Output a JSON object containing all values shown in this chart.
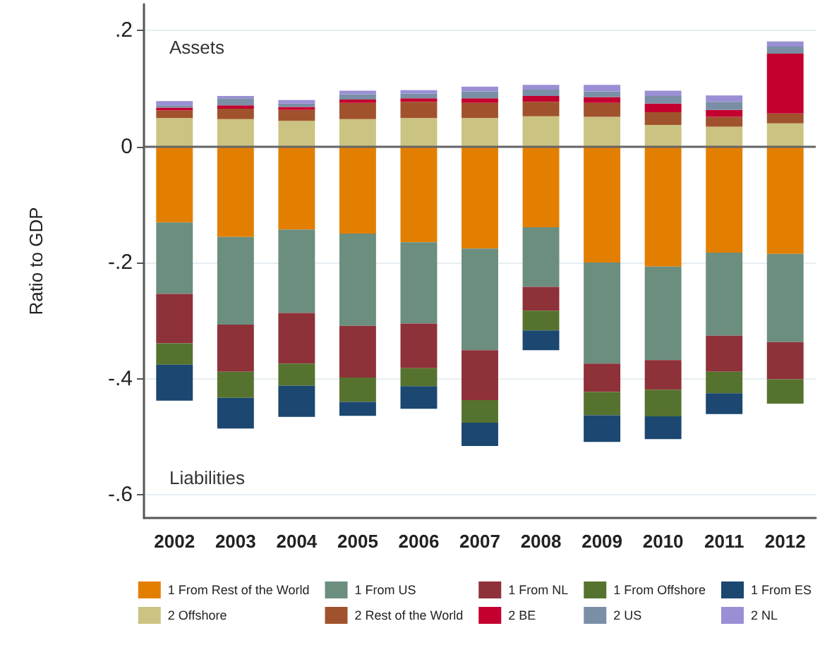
{
  "chart_data": {
    "type": "bar",
    "stacked": true,
    "ylabel": "Ratio to GDP",
    "categories": [
      "2002",
      "2003",
      "2004",
      "2005",
      "2006",
      "2007",
      "2008",
      "2009",
      "2010",
      "2011",
      "2012"
    ],
    "series": [
      {
        "name": "1 From Rest of the World",
        "color": "#e37f00",
        "values": [
          -0.131,
          -0.156,
          -0.143,
          -0.15,
          -0.165,
          -0.176,
          -0.139,
          -0.2,
          -0.207,
          -0.183,
          -0.185
        ]
      },
      {
        "name": "1 From US",
        "color": "#6b8e7f",
        "values": [
          -0.123,
          -0.151,
          -0.144,
          -0.159,
          -0.14,
          -0.175,
          -0.103,
          -0.174,
          -0.161,
          -0.143,
          -0.152
        ]
      },
      {
        "name": "1 From NL",
        "color": "#8e3139",
        "values": [
          -0.085,
          -0.081,
          -0.087,
          -0.089,
          -0.077,
          -0.086,
          -0.041,
          -0.049,
          -0.051,
          -0.062,
          -0.064
        ]
      },
      {
        "name": "1 From Offshore",
        "color": "#55732e",
        "values": [
          -0.037,
          -0.045,
          -0.038,
          -0.042,
          -0.031,
          -0.039,
          -0.034,
          -0.04,
          -0.046,
          -0.037,
          -0.042
        ]
      },
      {
        "name": "1 From ES",
        "color": "#1b4770",
        "values": [
          -0.062,
          -0.053,
          -0.054,
          -0.024,
          -0.039,
          -0.04,
          -0.034,
          -0.046,
          -0.039,
          -0.036,
          null
        ]
      },
      {
        "name": "2 Offshore",
        "color": "#cbc381",
        "values": [
          0.049,
          0.047,
          0.044,
          0.047,
          0.049,
          0.049,
          0.052,
          0.051,
          0.037,
          0.034,
          0.04
        ]
      },
      {
        "name": "2 Rest of the World",
        "color": "#a0522d",
        "values": [
          0.013,
          0.018,
          0.019,
          0.028,
          0.028,
          0.026,
          0.025,
          0.024,
          0.022,
          0.017,
          0.017
        ]
      },
      {
        "name": "2 BE",
        "color": "#c3002f",
        "values": [
          0.005,
          0.006,
          0.005,
          0.006,
          0.006,
          0.008,
          0.01,
          0.01,
          0.015,
          0.012,
          0.103
        ]
      },
      {
        "name": "2 US",
        "color": "#7a8fa6",
        "values": [
          0.004,
          0.012,
          0.006,
          0.009,
          0.008,
          0.012,
          0.011,
          0.01,
          0.013,
          0.014,
          0.012
        ]
      },
      {
        "name": "2 NL",
        "color": "#9a8fd5",
        "values": [
          0.007,
          0.004,
          0.006,
          0.006,
          0.006,
          0.008,
          0.008,
          0.011,
          0.009,
          0.011,
          0.009
        ]
      }
    ],
    "ylim": [
      -0.64,
      0.245
    ],
    "yticks": [
      {
        "value": 0.2,
        "label": ".2"
      },
      {
        "value": 0,
        "label": "0"
      },
      {
        "value": -0.2,
        "label": "-.2"
      },
      {
        "value": -0.4,
        "label": "-.4"
      },
      {
        "value": -0.6,
        "label": "-.6"
      }
    ],
    "ref_lines": [
      {
        "axis": "y",
        "value": 0,
        "label": null,
        "color": "#666666"
      }
    ],
    "annotations": [
      "Assets",
      "Liabilities"
    ],
    "grid": "y",
    "legend": "bottom"
  }
}
